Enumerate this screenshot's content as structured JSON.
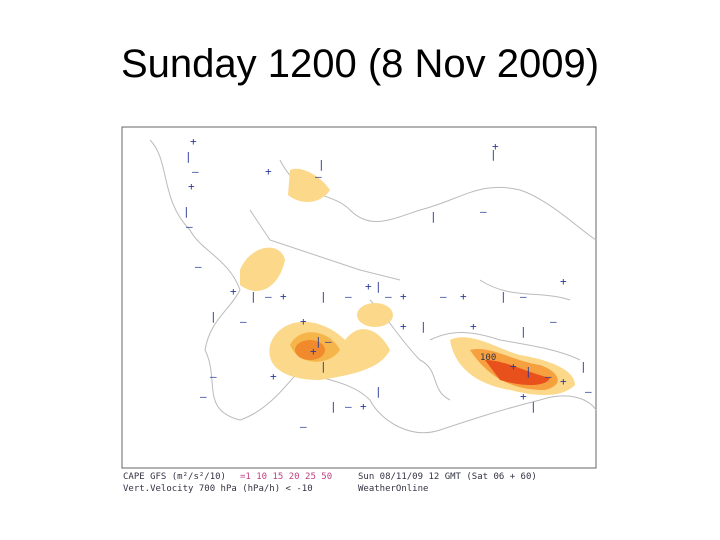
{
  "header": {
    "title": "Sunday 1200 (8 Nov 2009)"
  },
  "map": {
    "label": "100",
    "caption": {
      "line1_left": "CAPE GFS (m²/s²/10)",
      "scale": "=1 10 15 20 25 50",
      "line1_right": "Sun 08/11/09 12 GMT  (Sat 06 + 60)",
      "line2_left": "Vert.Velocity 700 hPa (hPa/h) < -10",
      "line2_right": "WeatherOnline"
    }
  }
}
